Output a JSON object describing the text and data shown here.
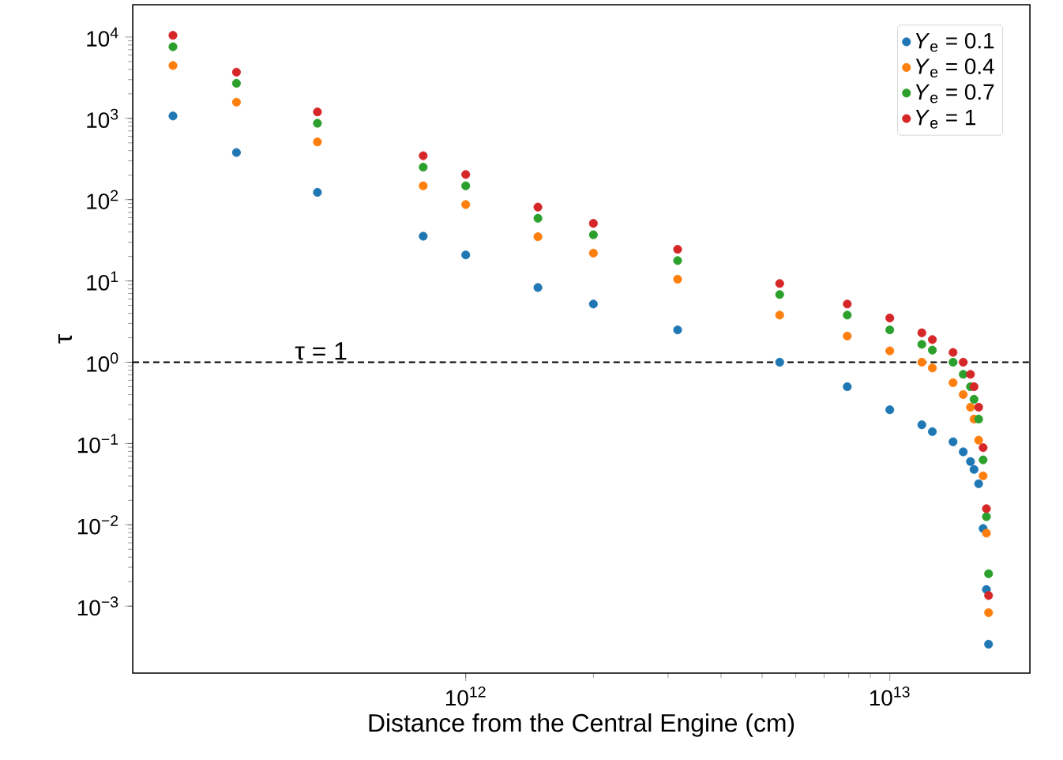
{
  "chart_data": {
    "type": "scatter",
    "xlabel": "Distance from the Central Engine (cm)",
    "ylabel": "τ",
    "x": [
      204000000000.0,
      288000000000.0,
      447000000000.0,
      794000000000.0,
      1000000000000.0,
      1480000000000.0,
      2000000000000.0,
      3160000000000.0,
      5500000000000.0,
      7940000000000.0,
      10000000000000.0,
      11900000000000.0,
      12600000000000.0,
      14100000000000.0,
      14900000000000.0,
      15500000000000.0,
      15800000000000.0,
      16200000000000.0,
      16600000000000.0,
      16900000000000.0,
      17100000000000.0
    ],
    "series": [
      {
        "name": "*Y*$_{e}$ = 0.1",
        "color": "#1f77b4",
        "values": [
          1070,
          380,
          123,
          35.5,
          20.9,
          8.3,
          5.2,
          2.5,
          1.0,
          0.5,
          0.26,
          0.17,
          0.14,
          0.105,
          0.079,
          0.06,
          0.048,
          0.032,
          0.009,
          0.0016,
          0.00034
        ]
      },
      {
        "name": "*Y*$_{e}$ = 0.4",
        "color": "#ff7f0e",
        "values": [
          4470,
          1580,
          513,
          148,
          87,
          35,
          22,
          10.5,
          3.8,
          2.1,
          1.38,
          1.0,
          0.85,
          0.56,
          0.4,
          0.28,
          0.2,
          0.11,
          0.04,
          0.0079,
          0.00083
        ]
      },
      {
        "name": "*Y*$_{e}$ = 0.7",
        "color": "#2ca02c",
        "values": [
          7600,
          2700,
          870,
          251,
          148,
          59,
          37,
          17.8,
          6.8,
          3.8,
          2.5,
          1.66,
          1.41,
          1.0,
          0.71,
          0.5,
          0.35,
          0.2,
          0.063,
          0.0126,
          0.0025
        ]
      },
      {
        "name": "*Y*$_{e}$ = 1",
        "color": "#d62728",
        "values": [
          10500,
          3700,
          1200,
          347,
          204,
          81,
          51,
          24.5,
          9.3,
          5.2,
          3.5,
          2.3,
          1.9,
          1.32,
          1.0,
          0.71,
          0.5,
          0.28,
          0.089,
          0.0158,
          0.00135
        ]
      }
    ],
    "xlim": [
      164000000000.0,
      21400000000000.0
    ],
    "ylim": [
      0.00015,
      25000
    ],
    "xticks": [
      {
        "value": 1000000000000.0,
        "label": "10$^{12}$"
      },
      {
        "value": 10000000000000.0,
        "label": "10$^{13}$"
      }
    ],
    "yticks": [
      {
        "value": 0.001,
        "label": "10$^{−3}$"
      },
      {
        "value": 0.01,
        "label": "10$^{−2}$"
      },
      {
        "value": 0.1,
        "label": "10$^{−1}$"
      },
      {
        "value": 1,
        "label": "10$^{0}$"
      },
      {
        "value": 10,
        "label": "10$^{1}$"
      },
      {
        "value": 100,
        "label": "10$^{2}$"
      },
      {
        "value": 1000,
        "label": "10$^{3}$"
      },
      {
        "value": 10000,
        "label": "10$^{4}$"
      }
    ],
    "log": "xy",
    "marker": "circle",
    "legend": "top right",
    "ref_lines": [
      {
        "axis": "y",
        "value": 1,
        "label": "τ = 1",
        "line_style": "dashed",
        "color": "#000000"
      }
    ]
  }
}
